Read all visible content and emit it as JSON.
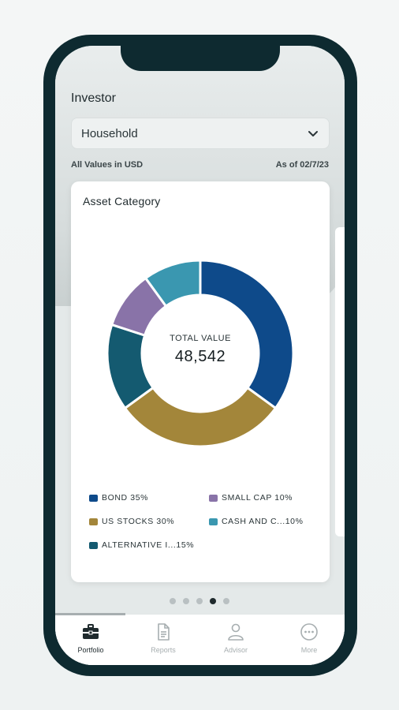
{
  "header": {
    "investor_label": "Investor",
    "select_value": "Household",
    "values_note": "All Values in USD",
    "as_of": "As of 02/7/23"
  },
  "card": {
    "title": "Asset Category",
    "total_label": "TOTAL VALUE",
    "total_value": "48,542"
  },
  "chart_data": {
    "type": "pie",
    "categories": [
      "BOND",
      "US STOCKS",
      "ALTERNATIVE I...",
      "SMALL CAP",
      "CASH AND C..."
    ],
    "values": [
      35,
      30,
      15,
      10,
      10
    ],
    "colors": [
      "#0e4a8a",
      "#a3863a",
      "#145a70",
      "#8973a8",
      "#3a97b0"
    ]
  },
  "legend": [
    {
      "label": "BOND 35%",
      "color": "#0e4a8a"
    },
    {
      "label": "SMALL CAP 10%",
      "color": "#8973a8"
    },
    {
      "label": "US STOCKS 30%",
      "color": "#a3863a"
    },
    {
      "label": "CASH AND C...10%",
      "color": "#3a97b0"
    },
    {
      "label": "ALTERNATIVE I...15%",
      "color": "#145a70"
    }
  ],
  "pagination": {
    "total": 5,
    "active": 4
  },
  "tabs": [
    {
      "label": "Portfolio",
      "icon": "briefcase-icon",
      "active": true
    },
    {
      "label": "Reports",
      "icon": "document-icon",
      "active": false
    },
    {
      "label": "Advisor",
      "icon": "person-icon",
      "active": false
    },
    {
      "label": "More",
      "icon": "more-icon",
      "active": false
    }
  ]
}
